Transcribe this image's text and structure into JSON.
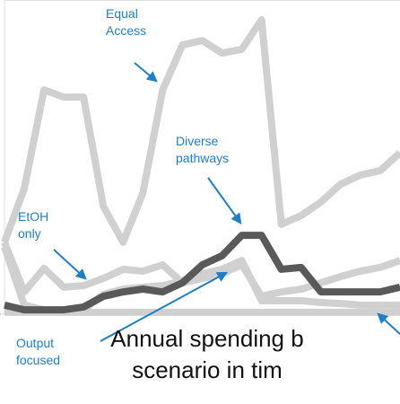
{
  "chart_data": {
    "type": "line",
    "title": [
      "Annual spending b",
      "scenario in tim"
    ],
    "categories": [
      null,
      null,
      null,
      null,
      null,
      null,
      null,
      null,
      null,
      null,
      null,
      null,
      null,
      null,
      null,
      null,
      null,
      null,
      null,
      null,
      null
    ],
    "ylim": [
      0,
      100
    ],
    "series": [
      {
        "color": "#d0d0d0",
        "values": [
          0.6,
          0.6,
          0.6,
          0.6,
          0.6,
          0.6,
          0.6,
          0.6,
          0.6,
          0.6,
          0.6,
          0.6,
          0.6,
          0.6,
          0.6,
          0.6,
          0.6,
          0.6,
          0.6,
          0.6,
          0.6
        ]
      },
      {
        "color": "#d0d0d0",
        "values": [
          22.9,
          40,
          71.4,
          69.1,
          69.1,
          34.3,
          22.9,
          38.6,
          71.4,
          85.7,
          87.1,
          83.1,
          84.3,
          93.7,
          28.6,
          31.4,
          35.7,
          41.4,
          44.3,
          45.7,
          51.4
        ]
      },
      {
        "color": "#d0d0d0",
        "values": [
          22.9,
          7.1,
          14.6,
          8.6,
          9.1,
          11.4,
          14.3,
          13.7,
          15.7,
          10,
          11.4,
          12.9,
          15.7,
          5.7,
          7.1,
          8,
          10,
          12,
          13.7,
          14.9,
          17.1
        ]
      },
      {
        "color": "#d0d0d0",
        "values": [
          21.4,
          2.9,
          1.4,
          1.4,
          1.4,
          6.3,
          8,
          8.6,
          9.1,
          10.6,
          12.9,
          14.3,
          17.1,
          4.3,
          4.3,
          4.3,
          3.7,
          3.4,
          2.9,
          2.9,
          2.9
        ]
      },
      {
        "color": "#595959",
        "values": [
          2.9,
          1.4,
          1.4,
          1.4,
          2.3,
          5.7,
          7.1,
          8,
          7.1,
          10,
          15.7,
          18.6,
          25.1,
          25.1,
          14.3,
          14.9,
          7.1,
          7.1,
          7.1,
          7.1,
          8.6
        ]
      }
    ],
    "annotations": [
      [
        "Equal",
        "Access"
      ],
      [
        "Diverse",
        "pathways"
      ],
      [
        "EtOH",
        "only"
      ],
      [
        "Output",
        "focused"
      ]
    ],
    "annotation_color": "#1f7fc4"
  }
}
